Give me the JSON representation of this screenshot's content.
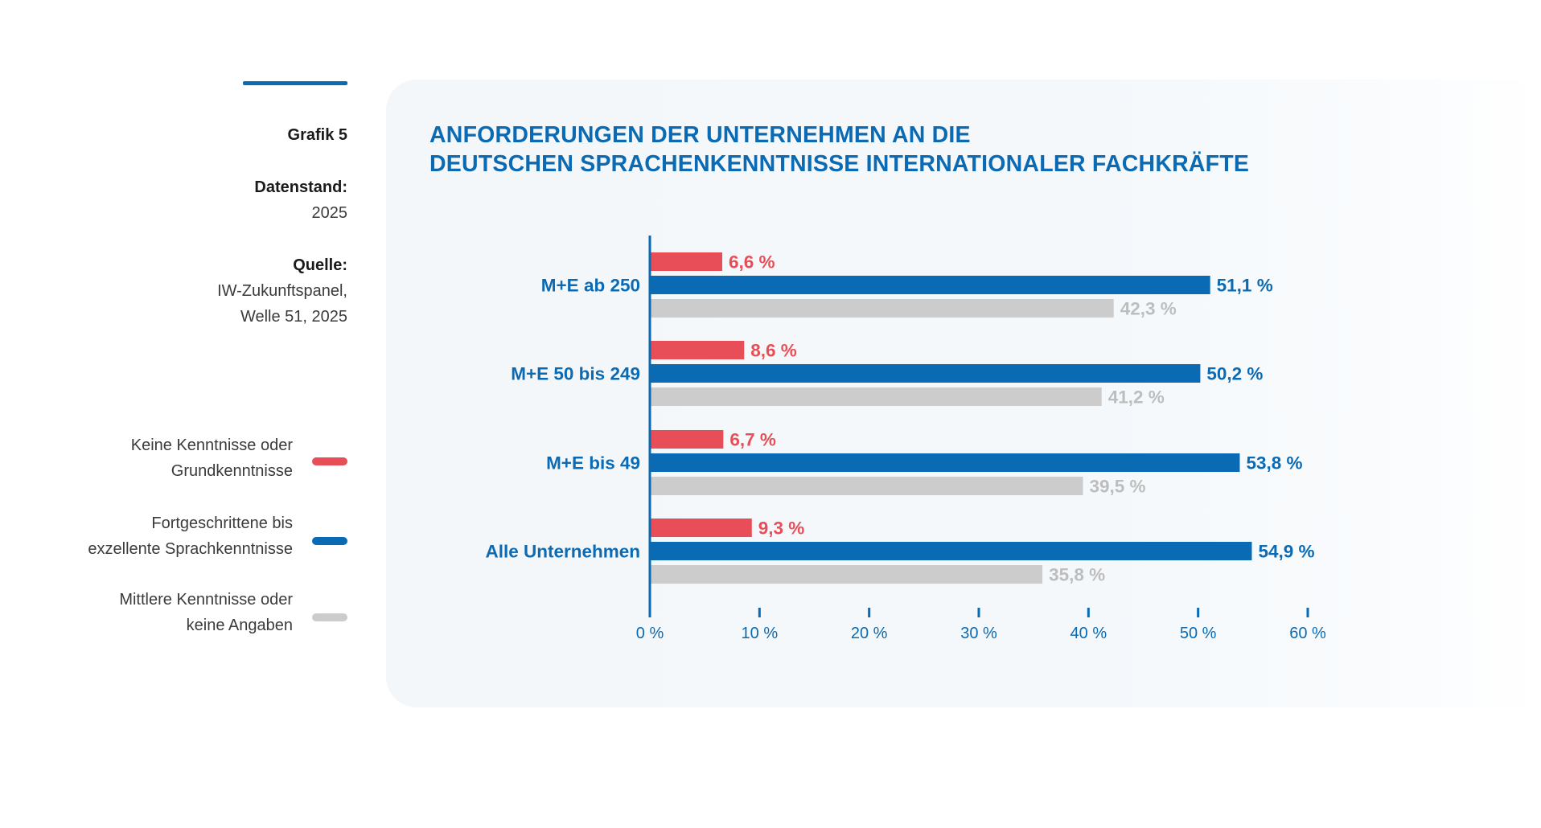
{
  "meta": {
    "grafik": "Grafik 5",
    "datenstand_label": "Datenstand:",
    "datenstand_value": "2025",
    "quelle_label": "Quelle:",
    "quelle_line1": "IW-Zukunftspanel,",
    "quelle_line2": "Welle 51, 2025"
  },
  "legend": [
    {
      "line1": "Keine Kenntnisse oder",
      "line2": "Grundkenntnisse",
      "color": "#e84e57"
    },
    {
      "line1": "Fortgeschrittene bis",
      "line2": "exzellente Sprachkenntnisse",
      "color": "#0a6ab3"
    },
    {
      "line1": "Mittlere Kenntnisse oder",
      "line2": "keine Angaben",
      "color": "#cccccc"
    }
  ],
  "colors": {
    "red": "#e84e57",
    "blue": "#0a6ab3",
    "gray": "#cccccc",
    "gray_label": "#bdbdbd"
  },
  "chart_data": {
    "type": "bar",
    "orientation": "horizontal",
    "title_line1": "ANFORDERUNGEN DER UNTERNEHMEN AN DIE",
    "title_line2": "DEUTSCHEN SPRACHENKENNTNISSE INTERNATIONALER FACHKRÄFTE",
    "categories": [
      "M+E ab 250",
      "M+E 50 bis 249",
      "M+E bis 49",
      "Alle Unternehmen"
    ],
    "series": [
      {
        "name": "Keine Kenntnisse oder Grundkenntnisse",
        "values": [
          6.6,
          8.6,
          6.7,
          9.3
        ],
        "labels": [
          "6,6 %",
          "8,6 %",
          "6,7 %",
          "9,3 %"
        ]
      },
      {
        "name": "Fortgeschrittene bis exzellente Sprachkenntnisse",
        "values": [
          51.1,
          50.2,
          53.8,
          54.9
        ],
        "labels": [
          "51,1 %",
          "50,2 %",
          "53,8 %",
          "54,9 %"
        ]
      },
      {
        "name": "Mittlere Kenntnisse oder keine Angaben",
        "values": [
          42.3,
          41.2,
          39.5,
          35.8
        ],
        "labels": [
          "42,3 %",
          "41,2 %",
          "39,5 %",
          "35,8 %"
        ]
      }
    ],
    "xlim": [
      0,
      60
    ],
    "xticks": [
      0,
      10,
      20,
      30,
      40,
      50,
      60
    ],
    "xtick_labels": [
      "0 %",
      "10 %",
      "20 %",
      "30 %",
      "40 %",
      "50 %",
      "60 %"
    ]
  }
}
